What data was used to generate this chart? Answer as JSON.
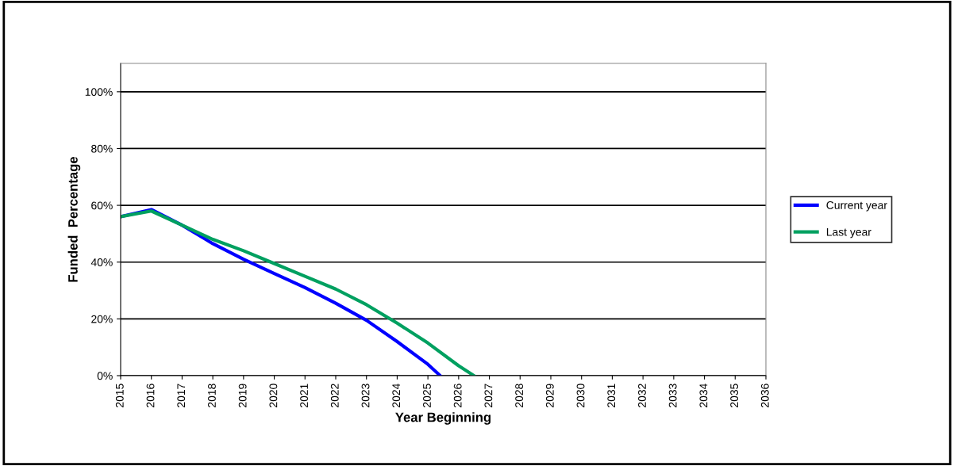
{
  "chart_data": {
    "type": "line",
    "xlabel": "Year Beginning",
    "ylabel": "Funded  Percentage",
    "xlim": [
      2015,
      2036
    ],
    "xticks": [
      2015,
      2016,
      2017,
      2018,
      2019,
      2020,
      2021,
      2022,
      2023,
      2024,
      2025,
      2026,
      2027,
      2028,
      2029,
      2030,
      2031,
      2032,
      2033,
      2034,
      2035,
      2036
    ],
    "ylim": [
      0,
      110
    ],
    "yticks": [
      {
        "value": 0,
        "label": "0%"
      },
      {
        "value": 20,
        "label": "20%"
      },
      {
        "value": 40,
        "label": "40%"
      },
      {
        "value": 60,
        "label": "60%"
      },
      {
        "value": 80,
        "label": "80%"
      },
      {
        "value": 100,
        "label": "100%"
      }
    ],
    "grid": "y",
    "legend": "right",
    "marker": "none",
    "line_style": "solid",
    "series": [
      {
        "name": "Current year",
        "color": "#0000ff",
        "x": [
          2015,
          2016,
          2017,
          2018,
          2019,
          2020,
          2021,
          2022,
          2023,
          2024,
          2025,
          2025.4
        ],
        "values": [
          56,
          58.5,
          53,
          46.5,
          41,
          36,
          31,
          25.5,
          19.5,
          12,
          4,
          0
        ]
      },
      {
        "name": "Last year",
        "color": "#00a060",
        "x": [
          2015,
          2016,
          2017,
          2018,
          2019,
          2020,
          2021,
          2022,
          2023,
          2024,
          2025,
          2026,
          2026.5
        ],
        "values": [
          56,
          58,
          53,
          48,
          44,
          39.5,
          35,
          30.5,
          25,
          18.5,
          11.5,
          3.5,
          0
        ]
      }
    ]
  }
}
